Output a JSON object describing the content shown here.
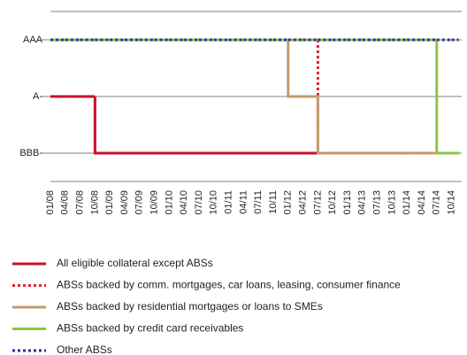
{
  "chart_data": {
    "type": "step-line",
    "categories": [
      "01/08",
      "04/08",
      "07/08",
      "10/08",
      "01/09",
      "04/09",
      "07/09",
      "10/09",
      "01/10",
      "04/10",
      "07/10",
      "10/10",
      "01/11",
      "04/11",
      "07/11",
      "10/11",
      "01/12",
      "04/12",
      "07/12",
      "10/12",
      "01/13",
      "04/13",
      "07/13",
      "10/13",
      "01/14",
      "04/14",
      "07/14",
      "10/14"
    ],
    "ylim": [
      0,
      6
    ],
    "yticks": [
      {
        "value": 5,
        "label": "AAA"
      },
      {
        "value": 3,
        "label": "A-"
      },
      {
        "value": 1,
        "label": "BBB-"
      }
    ],
    "grid": true,
    "series": [
      {
        "name": "All eligible collateral except ABSs",
        "color": "#c8102e",
        "line_style": "solid",
        "values": [
          3,
          3,
          3,
          1,
          1,
          1,
          1,
          1,
          1,
          1,
          1,
          1,
          1,
          1,
          1,
          1,
          1,
          1,
          1,
          1,
          1,
          1,
          1,
          1,
          1,
          1,
          1,
          1
        ]
      },
      {
        "name": "ABSs backed by comm. mortgages, car loans, leasing, consumer finance",
        "color": "#e8212a",
        "line_style": "dotted",
        "values": [
          5,
          5,
          5,
          5,
          5,
          5,
          5,
          5,
          5,
          5,
          5,
          5,
          5,
          5,
          5,
          5,
          5,
          5,
          1,
          1,
          1,
          1,
          1,
          1,
          1,
          1,
          1,
          1
        ]
      },
      {
        "name": "ABSs backed by residential mortgages or loans to SMEs",
        "color": "#c49a6c",
        "line_style": "solid",
        "values": [
          5,
          5,
          5,
          5,
          5,
          5,
          5,
          5,
          5,
          5,
          5,
          5,
          5,
          5,
          5,
          5,
          3,
          3,
          1,
          1,
          1,
          1,
          1,
          1,
          1,
          1,
          1,
          1
        ]
      },
      {
        "name": "ABSs backed by credit card receivables",
        "color": "#8dc63f",
        "line_style": "solid",
        "values": [
          5,
          5,
          5,
          5,
          5,
          5,
          5,
          5,
          5,
          5,
          5,
          5,
          5,
          5,
          5,
          5,
          5,
          5,
          5,
          5,
          5,
          5,
          5,
          5,
          5,
          5,
          1,
          1
        ]
      },
      {
        "name": "Other ABSs",
        "color": "#2e3192",
        "line_style": "dotted",
        "values": [
          5,
          5,
          5,
          5,
          5,
          5,
          5,
          5,
          5,
          5,
          5,
          5,
          5,
          5,
          5,
          5,
          5,
          5,
          5,
          5,
          5,
          5,
          5,
          5,
          5,
          5,
          5,
          5
        ]
      }
    ]
  }
}
